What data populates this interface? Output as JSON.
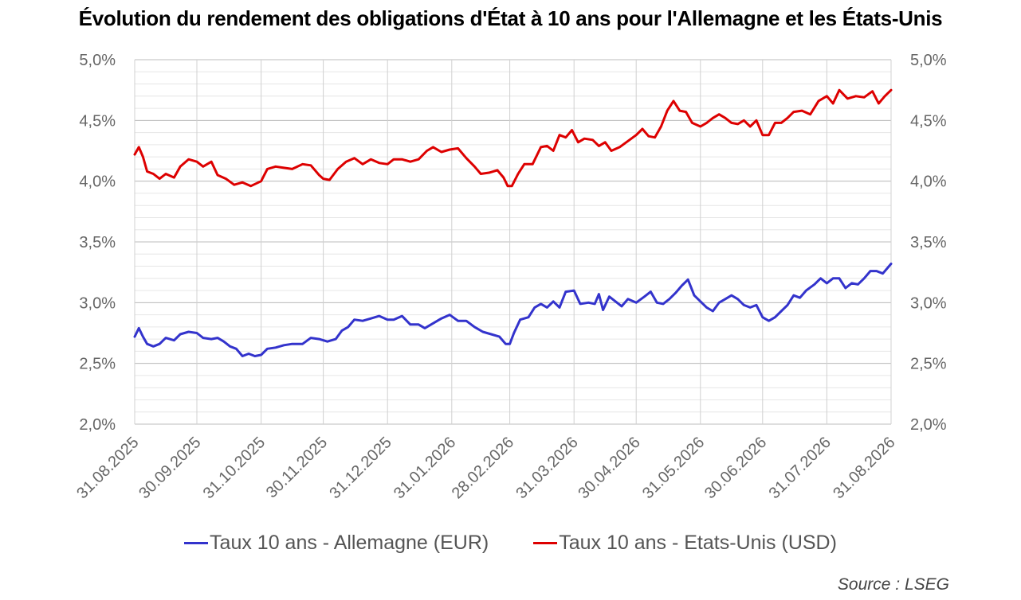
{
  "chart_data": {
    "type": "line",
    "title": "Évolution du rendement des obligations d'État à 10 ans pour l'Allemagne et les États-Unis",
    "source": "Source : LSEG",
    "y_axis": {
      "min": 2.0,
      "max": 5.0,
      "major_step": 0.5,
      "minor_step": 0.1,
      "tick_labels": [
        "2,0%",
        "2,5%",
        "3,0%",
        "3,5%",
        "4,0%",
        "4,5%",
        "5,0%"
      ],
      "secondary_tick_labels": [
        "2,0%",
        "2,5%",
        "3,0%",
        "3,5%",
        "4,0%",
        "4,5%",
        "5,0%"
      ]
    },
    "x_axis": {
      "start": "2025-08-31",
      "end": "2026-08-31",
      "tick_labels": [
        "31.08.2025",
        "30.09.2025",
        "31.10.2025",
        "30.11.2025",
        "31.12.2025",
        "31.01.2026",
        "28.02.2026",
        "31.03.2026",
        "30.04.2026",
        "31.05.2026",
        "30.06.2026",
        "31.07.2026",
        "31.08.2026"
      ],
      "tick_dates": [
        "2025-08-31",
        "2025-09-30",
        "2025-10-31",
        "2025-11-30",
        "2025-12-31",
        "2026-01-31",
        "2026-02-28",
        "2026-03-31",
        "2026-04-30",
        "2026-05-31",
        "2026-06-30",
        "2026-07-31",
        "2026-08-31"
      ]
    },
    "grid": {
      "horizontal": true,
      "vertical": true
    },
    "legend_position": "bottom",
    "series": [
      {
        "name": "Taux 10 ans - Allemagne (EUR)",
        "color": "#3333cc",
        "points": [
          [
            "2025-08-31",
            2.72
          ],
          [
            "2025-09-02",
            2.79
          ],
          [
            "2025-09-04",
            2.72
          ],
          [
            "2025-09-06",
            2.66
          ],
          [
            "2025-09-09",
            2.64
          ],
          [
            "2025-09-12",
            2.66
          ],
          [
            "2025-09-15",
            2.71
          ],
          [
            "2025-09-19",
            2.69
          ],
          [
            "2025-09-22",
            2.74
          ],
          [
            "2025-09-26",
            2.76
          ],
          [
            "2025-09-30",
            2.75
          ],
          [
            "2025-10-03",
            2.71
          ],
          [
            "2025-10-07",
            2.7
          ],
          [
            "2025-10-10",
            2.71
          ],
          [
            "2025-10-13",
            2.68
          ],
          [
            "2025-10-16",
            2.64
          ],
          [
            "2025-10-19",
            2.62
          ],
          [
            "2025-10-22",
            2.56
          ],
          [
            "2025-10-25",
            2.58
          ],
          [
            "2025-10-28",
            2.56
          ],
          [
            "2025-10-31",
            2.57
          ],
          [
            "2025-11-03",
            2.62
          ],
          [
            "2025-11-07",
            2.63
          ],
          [
            "2025-11-11",
            2.65
          ],
          [
            "2025-11-15",
            2.66
          ],
          [
            "2025-11-20",
            2.66
          ],
          [
            "2025-11-24",
            2.71
          ],
          [
            "2025-11-28",
            2.7
          ],
          [
            "2025-12-02",
            2.68
          ],
          [
            "2025-12-06",
            2.7
          ],
          [
            "2025-12-09",
            2.77
          ],
          [
            "2025-12-12",
            2.8
          ],
          [
            "2025-12-15",
            2.86
          ],
          [
            "2025-12-19",
            2.85
          ],
          [
            "2025-12-23",
            2.87
          ],
          [
            "2025-12-27",
            2.89
          ],
          [
            "2025-12-31",
            2.86
          ],
          [
            "2026-01-03",
            2.86
          ],
          [
            "2026-01-07",
            2.89
          ],
          [
            "2026-01-11",
            2.82
          ],
          [
            "2026-01-15",
            2.82
          ],
          [
            "2026-01-18",
            2.79
          ],
          [
            "2026-01-22",
            2.83
          ],
          [
            "2026-01-26",
            2.87
          ],
          [
            "2026-01-30",
            2.9
          ],
          [
            "2026-02-03",
            2.85
          ],
          [
            "2026-02-07",
            2.85
          ],
          [
            "2026-02-11",
            2.8
          ],
          [
            "2026-02-15",
            2.76
          ],
          [
            "2026-02-19",
            2.74
          ],
          [
            "2026-02-23",
            2.72
          ],
          [
            "2026-02-26",
            2.66
          ],
          [
            "2026-02-28",
            2.66
          ],
          [
            "2026-03-02",
            2.75
          ],
          [
            "2026-03-05",
            2.86
          ],
          [
            "2026-03-09",
            2.88
          ],
          [
            "2026-03-12",
            2.96
          ],
          [
            "2026-03-15",
            2.99
          ],
          [
            "2026-03-18",
            2.96
          ],
          [
            "2026-03-21",
            3.01
          ],
          [
            "2026-03-24",
            2.96
          ],
          [
            "2026-03-27",
            3.09
          ],
          [
            "2026-03-31",
            3.1
          ],
          [
            "2026-04-03",
            2.99
          ],
          [
            "2026-04-07",
            3.0
          ],
          [
            "2026-04-10",
            2.99
          ],
          [
            "2026-04-12",
            3.07
          ],
          [
            "2026-04-14",
            2.94
          ],
          [
            "2026-04-17",
            3.05
          ],
          [
            "2026-04-20",
            3.01
          ],
          [
            "2026-04-23",
            2.97
          ],
          [
            "2026-04-26",
            3.03
          ],
          [
            "2026-04-30",
            3.0
          ],
          [
            "2026-05-04",
            3.05
          ],
          [
            "2026-05-07",
            3.09
          ],
          [
            "2026-05-10",
            3.0
          ],
          [
            "2026-05-13",
            2.99
          ],
          [
            "2026-05-16",
            3.03
          ],
          [
            "2026-05-19",
            3.08
          ],
          [
            "2026-05-22",
            3.14
          ],
          [
            "2026-05-25",
            3.19
          ],
          [
            "2026-05-28",
            3.06
          ],
          [
            "2026-05-31",
            3.01
          ],
          [
            "2026-06-03",
            2.96
          ],
          [
            "2026-06-06",
            2.93
          ],
          [
            "2026-06-09",
            3.0
          ],
          [
            "2026-06-12",
            3.03
          ],
          [
            "2026-06-15",
            3.06
          ],
          [
            "2026-06-18",
            3.03
          ],
          [
            "2026-06-21",
            2.98
          ],
          [
            "2026-06-24",
            2.96
          ],
          [
            "2026-06-27",
            2.98
          ],
          [
            "2026-06-30",
            2.88
          ],
          [
            "2026-07-03",
            2.85
          ],
          [
            "2026-07-06",
            2.88
          ],
          [
            "2026-07-09",
            2.93
          ],
          [
            "2026-07-12",
            2.98
          ],
          [
            "2026-07-15",
            3.06
          ],
          [
            "2026-07-18",
            3.04
          ],
          [
            "2026-07-21",
            3.1
          ],
          [
            "2026-07-25",
            3.15
          ],
          [
            "2026-07-28",
            3.2
          ],
          [
            "2026-07-31",
            3.16
          ],
          [
            "2026-08-03",
            3.2
          ],
          [
            "2026-08-06",
            3.2
          ],
          [
            "2026-08-09",
            3.12
          ],
          [
            "2026-08-12",
            3.16
          ],
          [
            "2026-08-15",
            3.15
          ],
          [
            "2026-08-18",
            3.2
          ],
          [
            "2026-08-21",
            3.26
          ],
          [
            "2026-08-24",
            3.26
          ],
          [
            "2026-08-27",
            3.24
          ],
          [
            "2026-08-29",
            3.28
          ],
          [
            "2026-08-31",
            3.32
          ]
        ]
      },
      {
        "name": "Taux 10 ans - Etats-Unis (USD)",
        "color": "#dd0000",
        "points": [
          [
            "2025-08-31",
            4.22
          ],
          [
            "2025-09-02",
            4.28
          ],
          [
            "2025-09-04",
            4.2
          ],
          [
            "2025-09-06",
            4.08
          ],
          [
            "2025-09-09",
            4.06
          ],
          [
            "2025-09-12",
            4.02
          ],
          [
            "2025-09-15",
            4.06
          ],
          [
            "2025-09-19",
            4.03
          ],
          [
            "2025-09-22",
            4.12
          ],
          [
            "2025-09-26",
            4.18
          ],
          [
            "2025-09-30",
            4.16
          ],
          [
            "2025-10-03",
            4.12
          ],
          [
            "2025-10-07",
            4.16
          ],
          [
            "2025-10-10",
            4.05
          ],
          [
            "2025-10-14",
            4.02
          ],
          [
            "2025-10-18",
            3.97
          ],
          [
            "2025-10-22",
            3.99
          ],
          [
            "2025-10-26",
            3.96
          ],
          [
            "2025-10-31",
            4.0
          ],
          [
            "2025-11-03",
            4.1
          ],
          [
            "2025-11-07",
            4.12
          ],
          [
            "2025-11-11",
            4.11
          ],
          [
            "2025-11-15",
            4.1
          ],
          [
            "2025-11-20",
            4.14
          ],
          [
            "2025-11-24",
            4.13
          ],
          [
            "2025-11-28",
            4.05
          ],
          [
            "2025-11-30",
            4.02
          ],
          [
            "2025-12-03",
            4.01
          ],
          [
            "2025-12-07",
            4.1
          ],
          [
            "2025-12-11",
            4.16
          ],
          [
            "2025-12-15",
            4.19
          ],
          [
            "2025-12-19",
            4.14
          ],
          [
            "2025-12-23",
            4.18
          ],
          [
            "2025-12-27",
            4.15
          ],
          [
            "2025-12-31",
            4.14
          ],
          [
            "2026-01-03",
            4.18
          ],
          [
            "2026-01-07",
            4.18
          ],
          [
            "2026-01-11",
            4.16
          ],
          [
            "2026-01-15",
            4.18
          ],
          [
            "2026-01-19",
            4.25
          ],
          [
            "2026-01-22",
            4.28
          ],
          [
            "2026-01-26",
            4.24
          ],
          [
            "2026-01-30",
            4.26
          ],
          [
            "2026-02-03",
            4.27
          ],
          [
            "2026-02-07",
            4.19
          ],
          [
            "2026-02-11",
            4.12
          ],
          [
            "2026-02-14",
            4.06
          ],
          [
            "2026-02-18",
            4.07
          ],
          [
            "2026-02-22",
            4.09
          ],
          [
            "2026-02-25",
            4.03
          ],
          [
            "2026-02-27",
            3.96
          ],
          [
            "2026-03-01",
            3.96
          ],
          [
            "2026-03-04",
            4.06
          ],
          [
            "2026-03-07",
            4.14
          ],
          [
            "2026-03-11",
            4.14
          ],
          [
            "2026-03-15",
            4.28
          ],
          [
            "2026-03-18",
            4.29
          ],
          [
            "2026-03-21",
            4.25
          ],
          [
            "2026-03-24",
            4.38
          ],
          [
            "2026-03-27",
            4.36
          ],
          [
            "2026-03-30",
            4.42
          ],
          [
            "2026-04-02",
            4.32
          ],
          [
            "2026-04-05",
            4.35
          ],
          [
            "2026-04-09",
            4.34
          ],
          [
            "2026-04-12",
            4.29
          ],
          [
            "2026-04-15",
            4.32
          ],
          [
            "2026-04-18",
            4.25
          ],
          [
            "2026-04-22",
            4.28
          ],
          [
            "2026-04-26",
            4.33
          ],
          [
            "2026-04-30",
            4.38
          ],
          [
            "2026-05-03",
            4.43
          ],
          [
            "2026-05-06",
            4.37
          ],
          [
            "2026-05-09",
            4.36
          ],
          [
            "2026-05-12",
            4.45
          ],
          [
            "2026-05-15",
            4.58
          ],
          [
            "2026-05-18",
            4.66
          ],
          [
            "2026-05-21",
            4.58
          ],
          [
            "2026-05-24",
            4.57
          ],
          [
            "2026-05-27",
            4.48
          ],
          [
            "2026-05-31",
            4.45
          ],
          [
            "2026-06-03",
            4.48
          ],
          [
            "2026-06-06",
            4.52
          ],
          [
            "2026-06-09",
            4.55
          ],
          [
            "2026-06-12",
            4.52
          ],
          [
            "2026-06-15",
            4.48
          ],
          [
            "2026-06-18",
            4.47
          ],
          [
            "2026-06-21",
            4.5
          ],
          [
            "2026-06-24",
            4.45
          ],
          [
            "2026-06-27",
            4.5
          ],
          [
            "2026-06-30",
            4.38
          ],
          [
            "2026-07-03",
            4.38
          ],
          [
            "2026-07-06",
            4.48
          ],
          [
            "2026-07-09",
            4.48
          ],
          [
            "2026-07-12",
            4.52
          ],
          [
            "2026-07-15",
            4.57
          ],
          [
            "2026-07-19",
            4.58
          ],
          [
            "2026-07-23",
            4.55
          ],
          [
            "2026-07-27",
            4.66
          ],
          [
            "2026-07-31",
            4.7
          ],
          [
            "2026-08-03",
            4.64
          ],
          [
            "2026-08-06",
            4.75
          ],
          [
            "2026-08-10",
            4.68
          ],
          [
            "2026-08-14",
            4.7
          ],
          [
            "2026-08-18",
            4.69
          ],
          [
            "2026-08-22",
            4.74
          ],
          [
            "2026-08-25",
            4.64
          ],
          [
            "2026-08-28",
            4.7
          ],
          [
            "2026-08-31",
            4.75
          ]
        ]
      }
    ]
  }
}
